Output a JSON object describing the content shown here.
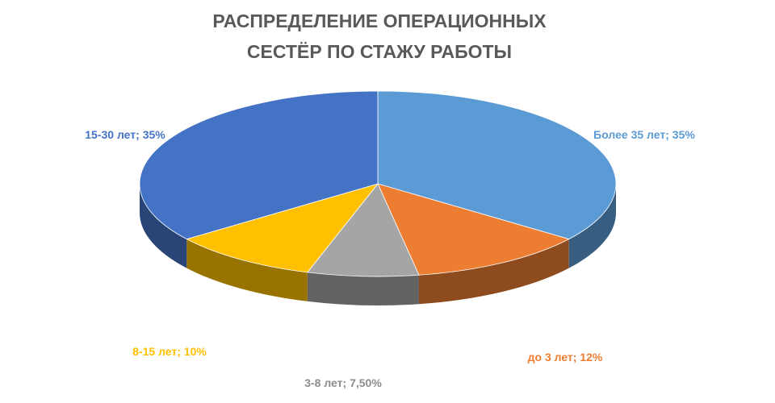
{
  "chart_data": {
    "type": "pie3d",
    "title": [
      "РАСПРЕДЕЛЕНИЕ ОПЕРАЦИОННЫХ",
      "СЕСТЁР ПО СТАЖУ РАБОТЫ"
    ],
    "categories": [
      "Более 35 лет",
      "до 3 лет",
      "3-8 лет",
      "8-15 лет",
      "15-30 лет"
    ],
    "values": [
      35,
      12,
      7.5,
      10,
      35
    ],
    "value_labels": [
      "35%",
      "12%",
      "7,50%",
      "10%",
      "35%"
    ],
    "label_separator": "; ",
    "colors": [
      "#5b9bd5",
      "#ed7d31",
      "#a5a5a5",
      "#ffc000",
      "#4472c4"
    ]
  }
}
